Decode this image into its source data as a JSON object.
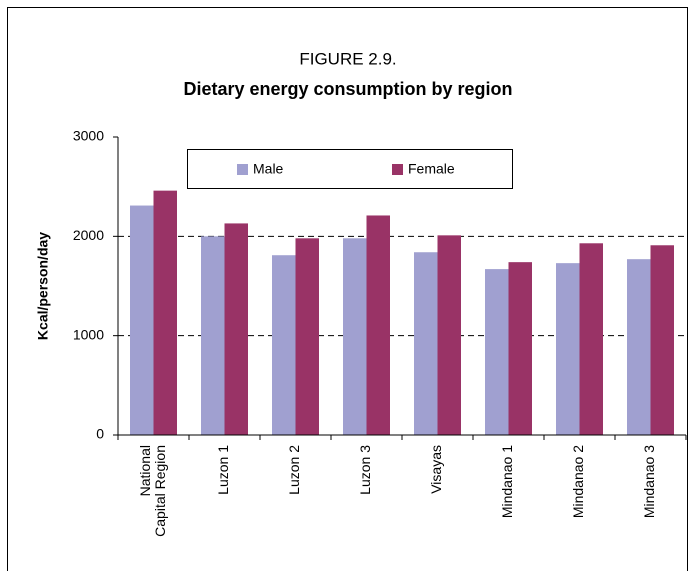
{
  "chart_data": {
    "type": "bar",
    "title": "FIGURE 2.9.",
    "subtitle": "Dietary energy consumption by region",
    "y_label": "Kcal/person/day",
    "categories": [
      "National Capital Region",
      "Luzon 1",
      "Luzon 2",
      "Luzon 3",
      "Visayas",
      "Mindanao 1",
      "Mindanao 2",
      "Mindanao 3"
    ],
    "series": [
      {
        "name": "Male",
        "color": "#a0a0d0",
        "values": [
          2310,
          2000,
          1810,
          1980,
          1840,
          1670,
          1730,
          1770
        ]
      },
      {
        "name": "Female",
        "color": "#993366",
        "values": [
          2460,
          2130,
          1980,
          2210,
          2010,
          1740,
          1930,
          1910
        ]
      }
    ],
    "ylim": [
      0,
      3000
    ],
    "yticks": [
      0,
      1000,
      2000,
      3000
    ],
    "grid": true,
    "legend": "top"
  }
}
